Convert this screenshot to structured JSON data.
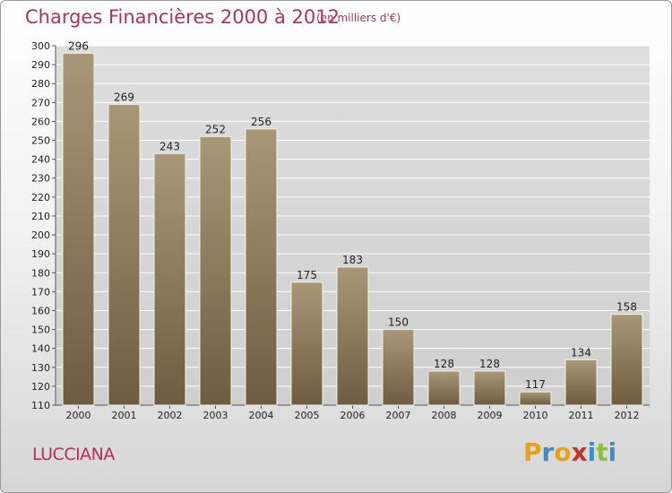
{
  "header": {
    "title": "Charges Financières 2000 à 2012",
    "unit_note": "(en milliers d'€)"
  },
  "commune": "LUCCIANA",
  "logo": {
    "letters": [
      "P",
      "r",
      "o",
      "x",
      "i",
      "t",
      "i"
    ],
    "colors": [
      "#e8a21a",
      "#3a8fd0",
      "#e8a21a",
      "#c8322b",
      "#3a8fd0",
      "#8cc03c",
      "#3a8fd0"
    ]
  },
  "colors": {
    "bar_top": "#a89878",
    "bar_bottom": "#6e5c40",
    "title": "#b0305e",
    "grid": "#ffffff"
  },
  "chart_data": {
    "type": "bar",
    "categories": [
      "2000",
      "2001",
      "2002",
      "2003",
      "2004",
      "2005",
      "2006",
      "2007",
      "2008",
      "2009",
      "2010",
      "2011",
      "2012"
    ],
    "values": [
      296,
      269,
      243,
      252,
      256,
      175,
      183,
      150,
      128,
      128,
      117,
      134,
      158
    ],
    "title": "Charges Financières 2000 à 2012",
    "subtitle": "(en milliers d'€)",
    "ylim": [
      110,
      300
    ],
    "yticks": [
      110,
      120,
      130,
      140,
      150,
      160,
      170,
      180,
      190,
      200,
      210,
      220,
      230,
      240,
      250,
      260,
      270,
      280,
      290,
      300
    ],
    "grid": true
  }
}
